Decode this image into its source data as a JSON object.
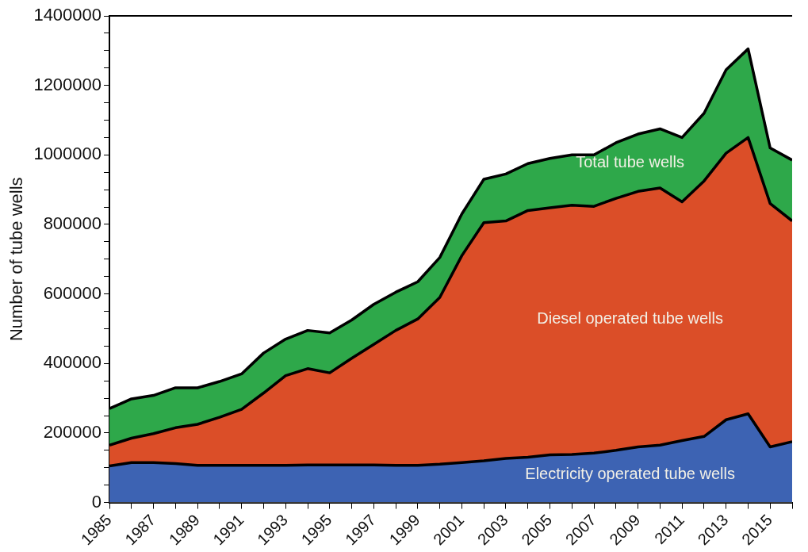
{
  "chart_data": {
    "type": "area",
    "ylabel": "Number of tube wells",
    "x": [
      1985,
      1986,
      1987,
      1988,
      1989,
      1990,
      1991,
      1992,
      1993,
      1994,
      1995,
      1996,
      1997,
      1998,
      1999,
      2000,
      2001,
      2002,
      2003,
      2004,
      2005,
      2006,
      2007,
      2008,
      2009,
      2010,
      2011,
      2012,
      2013,
      2014,
      2015,
      2016
    ],
    "series": [
      {
        "name": "Total tube wells",
        "color": "#2ea84a",
        "values": [
          270000,
          298000,
          308000,
          330000,
          330000,
          348000,
          370000,
          430000,
          470000,
          495000,
          488000,
          525000,
          570000,
          605000,
          635000,
          705000,
          830000,
          930000,
          945000,
          975000,
          990000,
          1000000,
          1000000,
          1035000,
          1060000,
          1075000,
          1050000,
          1120000,
          1245000,
          1305000,
          1020000,
          985000
        ]
      },
      {
        "name": "Diesel operated tube wells",
        "color": "#db4e28",
        "values": [
          165000,
          185000,
          198000,
          215000,
          225000,
          245000,
          268000,
          315000,
          365000,
          385000,
          373000,
          415000,
          455000,
          495000,
          528000,
          590000,
          710000,
          805000,
          810000,
          840000,
          848000,
          855000,
          852000,
          875000,
          895000,
          905000,
          865000,
          925000,
          1005000,
          1050000,
          860000,
          810000
        ]
      },
      {
        "name": "Electricity operated tube wells",
        "color": "#3d63b3",
        "values": [
          105000,
          115000,
          115000,
          112000,
          107000,
          107000,
          107000,
          107000,
          107000,
          108000,
          108000,
          108000,
          108000,
          107000,
          107000,
          110000,
          115000,
          120000,
          127000,
          130000,
          137000,
          138000,
          142000,
          150000,
          160000,
          165000,
          178000,
          190000,
          238000,
          255000,
          160000,
          175000
        ]
      }
    ],
    "xlim": [
      1985,
      2016
    ],
    "xticks": [
      1985,
      {
        "value": 1986,
        "label": null
      },
      1987,
      {
        "value": 1988,
        "label": null
      },
      1989,
      {
        "value": 1990,
        "label": null
      },
      1991,
      {
        "value": 1992,
        "label": null
      },
      1993,
      {
        "value": 1994,
        "label": null
      },
      1995,
      {
        "value": 1996,
        "label": null
      },
      1997,
      {
        "value": 1998,
        "label": null
      },
      1999,
      {
        "value": 2000,
        "label": null
      },
      2001,
      {
        "value": 2002,
        "label": null
      },
      2003,
      {
        "value": 2004,
        "label": null
      },
      2005,
      {
        "value": 2006,
        "label": null
      },
      2007,
      {
        "value": 2008,
        "label": null
      },
      2009,
      {
        "value": 2010,
        "label": null
      },
      2011,
      {
        "value": 2012,
        "label": null
      },
      2013,
      {
        "value": 2014,
        "label": null
      },
      2015,
      {
        "value": 2016,
        "label": null
      }
    ],
    "ylim": [
      0,
      1400000
    ],
    "yticks": [
      0,
      {
        "value": 50000,
        "label": null
      },
      {
        "value": 100000,
        "label": null
      },
      {
        "value": 150000,
        "label": null
      },
      200000,
      {
        "value": 250000,
        "label": null
      },
      {
        "value": 300000,
        "label": null
      },
      {
        "value": 350000,
        "label": null
      },
      400000,
      {
        "value": 450000,
        "label": null
      },
      {
        "value": 500000,
        "label": null
      },
      {
        "value": 550000,
        "label": null
      },
      600000,
      {
        "value": 650000,
        "label": null
      },
      {
        "value": 700000,
        "label": null
      },
      {
        "value": 750000,
        "label": null
      },
      800000,
      {
        "value": 850000,
        "label": null
      },
      {
        "value": 900000,
        "label": null
      },
      {
        "value": 950000,
        "label": null
      },
      1000000,
      {
        "value": 1050000,
        "label": null
      },
      {
        "value": 1100000,
        "label": null
      },
      {
        "value": 1150000,
        "label": null
      },
      1200000,
      {
        "value": 1250000,
        "label": null
      },
      {
        "value": 1300000,
        "label": null
      },
      {
        "value": 1350000,
        "label": null
      },
      1400000
    ],
    "grid": false,
    "legend": false,
    "marker": "none",
    "line_style": "solid"
  }
}
